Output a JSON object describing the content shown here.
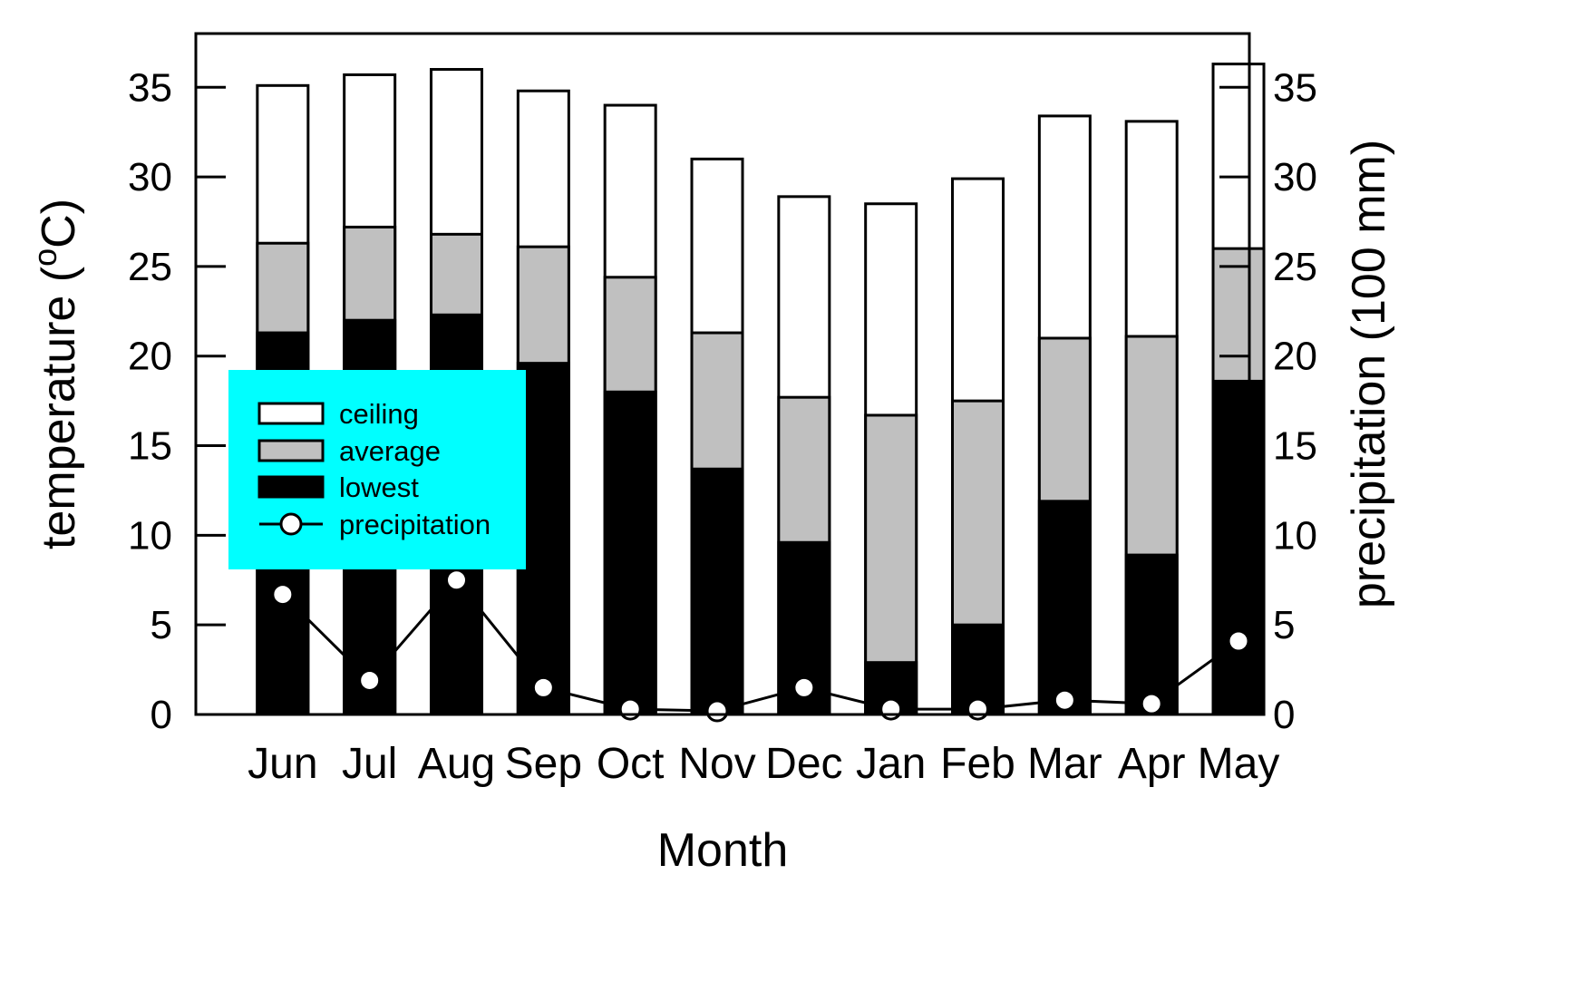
{
  "chart_data": {
    "type": "bar",
    "categories": [
      "Jun",
      "Jul",
      "Aug",
      "Sep",
      "Oct",
      "Nov",
      "Dec",
      "Jan",
      "Feb",
      "Mar",
      "Apr",
      "May"
    ],
    "series": [
      {
        "name": "ceiling",
        "values": [
          35.1,
          35.7,
          36.0,
          34.8,
          34.0,
          31.0,
          28.9,
          28.5,
          29.9,
          33.4,
          33.1,
          36.3
        ]
      },
      {
        "name": "average",
        "values": [
          26.3,
          27.2,
          26.8,
          26.1,
          24.4,
          21.3,
          17.7,
          16.7,
          17.5,
          21.0,
          21.1,
          26.0
        ]
      },
      {
        "name": "lowest",
        "values": [
          21.3,
          22.0,
          22.3,
          19.6,
          18.0,
          13.7,
          9.6,
          2.9,
          5.0,
          11.9,
          8.9,
          18.6
        ]
      },
      {
        "name": "precipitation",
        "values": [
          6.7,
          1.9,
          7.5,
          1.5,
          0.3,
          0.2,
          1.5,
          0.3,
          0.3,
          0.8,
          0.6,
          4.1
        ]
      }
    ],
    "xlabel": "Month",
    "ylabel": "temperature (",
    "ylabel_superscript": "o",
    "ylabel_suffix": "C)",
    "y2label": "precipitation (100 mm)",
    "ylim": [
      0,
      38
    ],
    "y2lim": [
      0,
      38
    ],
    "yticks": [
      "0",
      "5",
      "10",
      "15",
      "20",
      "25",
      "30",
      "35"
    ],
    "y2ticks": [
      "0",
      "5",
      "10",
      "15",
      "20",
      "25",
      "30",
      "35"
    ],
    "legend": {
      "position": "center-left",
      "background": "#00ffff",
      "items": [
        "ceiling",
        "average",
        "lowest",
        "precipitation"
      ]
    },
    "colors": {
      "ceiling": "#ffffff",
      "average": "#c0c0c0",
      "lowest": "#000000",
      "precipitation_marker": "#ffffff",
      "precipitation_line": "#000000"
    },
    "stacked": "overlapping"
  }
}
